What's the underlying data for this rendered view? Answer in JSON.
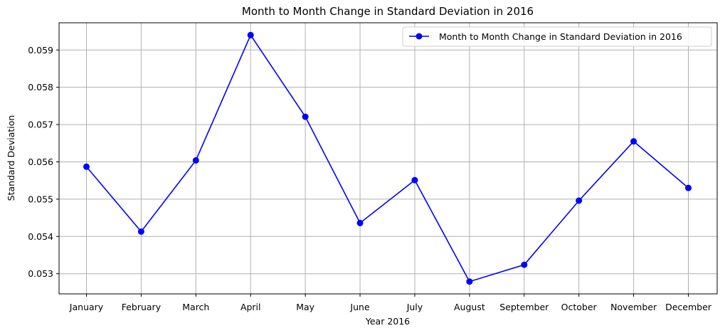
{
  "chart_data": {
    "type": "line",
    "title": "Month to Month Change in Standard Deviation in 2016",
    "xlabel": "Year 2016",
    "ylabel": "Standard Deviation",
    "categories": [
      "January",
      "February",
      "March",
      "April",
      "May",
      "June",
      "July",
      "August",
      "September",
      "October",
      "November",
      "December"
    ],
    "series": [
      {
        "name": "Month to Month Change in Standard Deviation in 2016",
        "values": [
          0.05587,
          0.05413,
          0.05604,
          0.0594,
          0.05721,
          0.05436,
          0.05551,
          0.05279,
          0.05324,
          0.05496,
          0.05655,
          0.0553
        ],
        "color": "#0000ff",
        "marker": "circle"
      }
    ],
    "ylim": [
      0.05246,
      0.05973
    ],
    "yticks": [
      "0.053",
      "0.054",
      "0.055",
      "0.056",
      "0.057",
      "0.058",
      "0.059"
    ],
    "grid": true,
    "legend": "upper right"
  }
}
